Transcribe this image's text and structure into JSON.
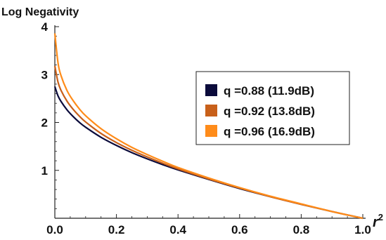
{
  "chart_data": {
    "type": "line",
    "ylabel": "Log Negativity",
    "xlabel_base": "r",
    "xlabel_exp": "2",
    "xlim": [
      0.0,
      1.0
    ],
    "ylim": [
      0,
      4
    ],
    "x_ticks": [
      "0.0",
      "0.2",
      "0.4",
      "0.6",
      "0.8",
      "1.0"
    ],
    "x_tick_values": [
      0.0,
      0.2,
      0.4,
      0.6,
      0.8,
      1.0
    ],
    "y_ticks": [
      "1",
      "2",
      "3",
      "4"
    ],
    "y_tick_values": [
      1,
      2,
      3,
      4
    ],
    "grid": false,
    "legend_position": "right",
    "series": [
      {
        "name": "q =0.88 (11.9dB)",
        "color": "#0b0b3b",
        "x": [
          0.0,
          0.01,
          0.02,
          0.04,
          0.06,
          0.08,
          0.1,
          0.15,
          0.2,
          0.25,
          0.3,
          0.35,
          0.4,
          0.5,
          0.6,
          0.7,
          0.8,
          0.9,
          1.0
        ],
        "y": [
          2.75,
          2.56,
          2.44,
          2.26,
          2.12,
          2.0,
          1.9,
          1.69,
          1.52,
          1.37,
          1.24,
          1.12,
          1.01,
          0.81,
          0.62,
          0.45,
          0.29,
          0.14,
          0.0
        ]
      },
      {
        "name": "q =0.92 (13.8dB)",
        "color": "#c8601a",
        "x": [
          0.0,
          0.01,
          0.02,
          0.04,
          0.06,
          0.08,
          0.1,
          0.15,
          0.2,
          0.25,
          0.3,
          0.35,
          0.4,
          0.5,
          0.6,
          0.7,
          0.8,
          0.9,
          1.0
        ],
        "y": [
          3.18,
          2.85,
          2.67,
          2.44,
          2.27,
          2.13,
          2.01,
          1.77,
          1.58,
          1.42,
          1.28,
          1.15,
          1.03,
          0.82,
          0.63,
          0.45,
          0.29,
          0.14,
          0.0
        ]
      },
      {
        "name": "q =0.96 (16.9dB)",
        "color": "#ff8c1a",
        "x": [
          0.0,
          0.01,
          0.02,
          0.04,
          0.06,
          0.08,
          0.1,
          0.15,
          0.2,
          0.25,
          0.3,
          0.35,
          0.4,
          0.5,
          0.6,
          0.7,
          0.8,
          0.9,
          1.0
        ],
        "y": [
          3.86,
          3.26,
          2.98,
          2.66,
          2.45,
          2.28,
          2.14,
          1.87,
          1.66,
          1.48,
          1.33,
          1.19,
          1.06,
          0.84,
          0.64,
          0.46,
          0.3,
          0.14,
          0.0
        ]
      }
    ]
  }
}
